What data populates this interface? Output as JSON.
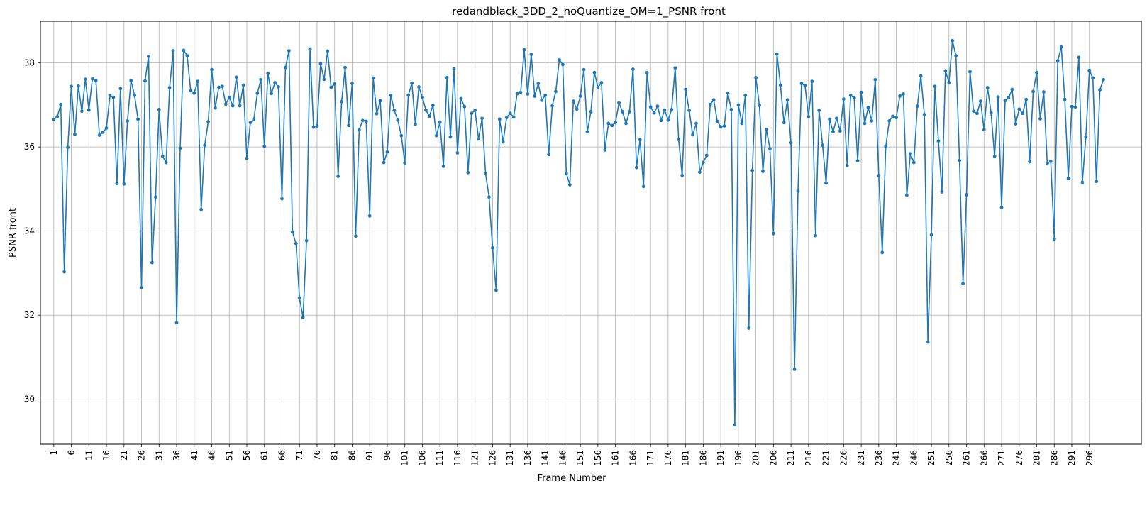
{
  "chart_data": {
    "type": "line",
    "title": "redandblack_3DD_2_noQuantize_OM=1_PSNR front",
    "xlabel": "Frame Number",
    "ylabel": "PSNR front",
    "xlim": [
      -2.8,
      310.8
    ],
    "ylim": [
      28.93,
      38.99
    ],
    "grid": true,
    "x_ticks": [
      1,
      6,
      11,
      16,
      21,
      26,
      31,
      36,
      41,
      46,
      51,
      56,
      61,
      66,
      71,
      76,
      81,
      86,
      91,
      96,
      101,
      106,
      111,
      116,
      121,
      126,
      131,
      136,
      141,
      146,
      151,
      156,
      161,
      166,
      171,
      176,
      181,
      186,
      191,
      196,
      201,
      206,
      211,
      216,
      221,
      226,
      231,
      236,
      241,
      246,
      251,
      256,
      261,
      266,
      271,
      276,
      281,
      286,
      291,
      296
    ],
    "y_ticks": [
      30,
      32,
      34,
      36,
      38
    ],
    "line_color": "#1f77b4",
    "marker": "circle",
    "series": [
      {
        "x_start": 1,
        "values": [
          36.65,
          36.72,
          37.01,
          33.03,
          35.99,
          37.44,
          36.3,
          37.45,
          36.85,
          37.61,
          36.88,
          37.62,
          37.58,
          36.28,
          36.35,
          36.45,
          37.22,
          37.18,
          35.13,
          37.39,
          35.12,
          36.62,
          37.58,
          37.23,
          36.66,
          32.65,
          37.57,
          38.16,
          33.25,
          34.81,
          36.89,
          35.78,
          35.63,
          37.41,
          38.29,
          31.82,
          35.97,
          38.3,
          38.17,
          37.34,
          37.28,
          37.56,
          34.51,
          36.04,
          36.6,
          37.84,
          36.93,
          37.42,
          37.44,
          37.02,
          37.18,
          36.98,
          37.66,
          36.98,
          37.47,
          35.73,
          36.58,
          36.66,
          37.28,
          37.6,
          36.01,
          37.75,
          37.27,
          37.53,
          37.43,
          34.77,
          37.89,
          38.29,
          33.98,
          33.7,
          32.41,
          31.94,
          33.77,
          38.33,
          36.47,
          36.5,
          37.98,
          37.61,
          38.28,
          37.42,
          37.5,
          35.3,
          37.08,
          37.89,
          36.51,
          37.51,
          33.88,
          36.41,
          36.63,
          36.61,
          34.36,
          37.64,
          36.79,
          37.1,
          35.63,
          35.88,
          37.23,
          36.87,
          36.64,
          36.27,
          35.62,
          37.23,
          37.52,
          36.54,
          37.43,
          37.18,
          36.88,
          36.73,
          36.99,
          36.27,
          36.59,
          35.54,
          37.65,
          36.24,
          37.86,
          35.86,
          37.15,
          36.96,
          35.39,
          36.8,
          36.87,
          36.19,
          36.68,
          35.37,
          34.81,
          33.6,
          32.59,
          36.66,
          36.12,
          36.7,
          36.8,
          36.71,
          37.27,
          37.3,
          38.31,
          37.26,
          38.2,
          37.21,
          37.51,
          37.11,
          37.23,
          35.82,
          36.98,
          37.32,
          38.07,
          37.96,
          35.37,
          35.1,
          37.09,
          36.9,
          37.21,
          37.84,
          36.36,
          36.84,
          37.77,
          37.42,
          37.53,
          35.93,
          36.56,
          36.51,
          36.58,
          37.05,
          36.84,
          36.56,
          36.84,
          37.85,
          35.51,
          36.17,
          35.06,
          37.77,
          36.95,
          36.81,
          36.97,
          36.63,
          36.88,
          36.64,
          36.89,
          37.88,
          36.18,
          35.32,
          37.37,
          36.87,
          36.29,
          36.56,
          35.4,
          35.63,
          35.8,
          37.01,
          37.12,
          36.61,
          36.48,
          36.5,
          37.28,
          36.89,
          29.39,
          37.0,
          36.56,
          37.23,
          31.69,
          35.44,
          37.65,
          36.99,
          35.42,
          36.42,
          35.96,
          33.94,
          38.21,
          37.47,
          36.58,
          37.12,
          36.1,
          30.71,
          34.95,
          37.51,
          37.46,
          36.72,
          37.56,
          33.89,
          36.87,
          36.04,
          35.14,
          36.66,
          36.36,
          36.68,
          36.38,
          37.14,
          35.56,
          37.23,
          37.17,
          35.67,
          37.3,
          36.56,
          36.94,
          36.62,
          37.6,
          35.32,
          33.49,
          36.01,
          36.62,
          36.73,
          36.7,
          37.21,
          37.26,
          34.85,
          35.84,
          35.63,
          36.97,
          37.69,
          36.77,
          31.36,
          33.91,
          37.44,
          36.14,
          34.93,
          37.81,
          37.53,
          38.53,
          38.17,
          35.68,
          32.75,
          34.86,
          37.79,
          36.85,
          36.8,
          37.09,
          36.41,
          37.41,
          36.81,
          35.78,
          37.19,
          34.56,
          37.1,
          37.17,
          37.37,
          36.55,
          36.9,
          36.8,
          37.13,
          35.65,
          37.32,
          37.77,
          36.67,
          37.31,
          35.61,
          35.66,
          33.81,
          38.05,
          38.38,
          37.13,
          35.25,
          36.96,
          36.95,
          38.13,
          35.16,
          36.24,
          37.82,
          37.64,
          35.18,
          37.36,
          37.6
        ]
      }
    ]
  }
}
